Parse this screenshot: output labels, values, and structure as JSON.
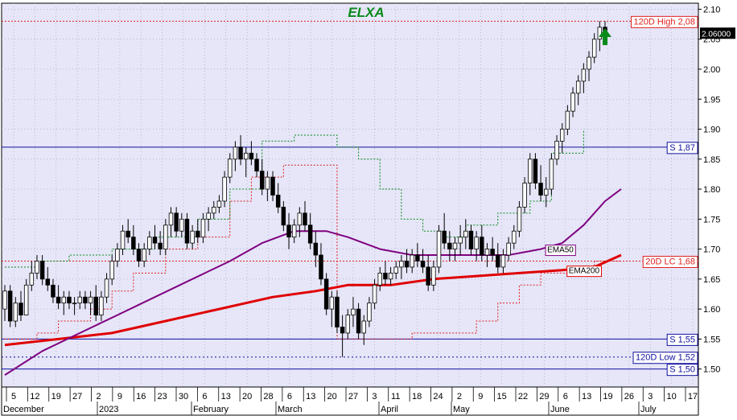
{
  "chart_data": {
    "type": "candlestick",
    "title": "ELXA",
    "colors": {
      "background": "#E6E6F8",
      "title": "#0A8A1A",
      "ema50": "#800080",
      "ema200": "#E00000",
      "support_line": "#1010A0",
      "resistance_line": "#E02020",
      "trailing_stop": "#0A8A1A",
      "trend_arrow": "#0A8A1A"
    },
    "y_axis": {
      "position": "right",
      "range": [
        1.47,
        2.11
      ],
      "ticks": [
        "2.10",
        "2.05",
        "2.00",
        "1.95",
        "1.90",
        "1.85",
        "1.80",
        "1.75",
        "1.70",
        "1.65",
        "1.60",
        "1.55",
        "1.50"
      ]
    },
    "x_axis": {
      "day_ticks": [
        "5",
        "12",
        "19",
        "27",
        "2",
        "9",
        "16",
        "23",
        "30",
        "6",
        "13",
        "20",
        "28",
        "6",
        "13",
        "20",
        "27",
        "3",
        "11",
        "18",
        "24",
        "2",
        "9",
        "15",
        "22",
        "29",
        "6",
        "13",
        "19",
        "26",
        "3",
        "10",
        "17"
      ],
      "month_labels": [
        "December",
        "2023",
        "February",
        "March",
        "April",
        "May",
        "June",
        "July"
      ]
    },
    "last_price": "2.06000",
    "indicators": [
      {
        "name": "EMA50",
        "label": "EMA50"
      },
      {
        "name": "EMA200",
        "label": "EMA200"
      }
    ],
    "horizontal_levels": [
      {
        "label": "120D High 2,08",
        "value": 2.08,
        "kind": "resistance-dotted"
      },
      {
        "label": "S 1,87",
        "value": 1.87,
        "kind": "support"
      },
      {
        "label": "20D LC 1,68",
        "value": 1.68,
        "kind": "resistance-dotted"
      },
      {
        "label": "S 1,55",
        "value": 1.55,
        "kind": "support"
      },
      {
        "label": "120D Low 1,52",
        "value": 1.52,
        "kind": "support-dotted"
      },
      {
        "label": "S 1,50",
        "value": 1.5,
        "kind": "support"
      }
    ],
    "candles": [
      [
        1.6,
        1.64,
        1.58,
        1.63
      ],
      [
        1.63,
        1.64,
        1.57,
        1.58
      ],
      [
        1.58,
        1.62,
        1.57,
        1.61
      ],
      [
        1.61,
        1.63,
        1.58,
        1.59
      ],
      [
        1.59,
        1.65,
        1.59,
        1.64
      ],
      [
        1.64,
        1.68,
        1.63,
        1.66
      ],
      [
        1.66,
        1.69,
        1.65,
        1.68
      ],
      [
        1.68,
        1.69,
        1.64,
        1.65
      ],
      [
        1.65,
        1.67,
        1.63,
        1.64
      ],
      [
        1.64,
        1.65,
        1.61,
        1.62
      ],
      [
        1.62,
        1.64,
        1.6,
        1.61
      ],
      [
        1.61,
        1.63,
        1.59,
        1.62
      ],
      [
        1.62,
        1.63,
        1.6,
        1.61
      ],
      [
        1.61,
        1.62,
        1.59,
        1.61
      ],
      [
        1.61,
        1.63,
        1.6,
        1.62
      ],
      [
        1.62,
        1.63,
        1.6,
        1.61
      ],
      [
        1.61,
        1.63,
        1.59,
        1.62
      ],
      [
        1.62,
        1.64,
        1.58,
        1.59
      ],
      [
        1.59,
        1.63,
        1.58,
        1.62
      ],
      [
        1.62,
        1.66,
        1.61,
        1.65
      ],
      [
        1.65,
        1.69,
        1.64,
        1.68
      ],
      [
        1.68,
        1.71,
        1.67,
        1.7
      ],
      [
        1.7,
        1.74,
        1.69,
        1.73
      ],
      [
        1.73,
        1.75,
        1.71,
        1.72
      ],
      [
        1.72,
        1.74,
        1.69,
        1.7
      ],
      [
        1.7,
        1.71,
        1.67,
        1.68
      ],
      [
        1.68,
        1.71,
        1.67,
        1.7
      ],
      [
        1.7,
        1.73,
        1.69,
        1.72
      ],
      [
        1.72,
        1.74,
        1.7,
        1.71
      ],
      [
        1.71,
        1.73,
        1.69,
        1.7
      ],
      [
        1.7,
        1.75,
        1.69,
        1.74
      ],
      [
        1.74,
        1.77,
        1.72,
        1.76
      ],
      [
        1.76,
        1.77,
        1.72,
        1.73
      ],
      [
        1.73,
        1.76,
        1.72,
        1.75
      ],
      [
        1.75,
        1.76,
        1.7,
        1.71
      ],
      [
        1.71,
        1.74,
        1.7,
        1.73
      ],
      [
        1.73,
        1.75,
        1.71,
        1.72
      ],
      [
        1.72,
        1.76,
        1.71,
        1.75
      ],
      [
        1.75,
        1.77,
        1.73,
        1.76
      ],
      [
        1.76,
        1.78,
        1.75,
        1.77
      ],
      [
        1.77,
        1.79,
        1.76,
        1.78
      ],
      [
        1.78,
        1.83,
        1.77,
        1.82
      ],
      [
        1.82,
        1.86,
        1.81,
        1.85
      ],
      [
        1.85,
        1.88,
        1.83,
        1.87
      ],
      [
        1.87,
        1.89,
        1.84,
        1.85
      ],
      [
        1.85,
        1.87,
        1.82,
        1.86
      ],
      [
        1.86,
        1.88,
        1.84,
        1.85
      ],
      [
        1.85,
        1.86,
        1.82,
        1.83
      ],
      [
        1.83,
        1.85,
        1.79,
        1.8
      ],
      [
        1.8,
        1.83,
        1.78,
        1.82
      ],
      [
        1.82,
        1.83,
        1.78,
        1.79
      ],
      [
        1.79,
        1.81,
        1.76,
        1.77
      ],
      [
        1.77,
        1.78,
        1.73,
        1.74
      ],
      [
        1.74,
        1.76,
        1.7,
        1.72
      ],
      [
        1.72,
        1.75,
        1.71,
        1.74
      ],
      [
        1.74,
        1.77,
        1.72,
        1.76
      ],
      [
        1.76,
        1.78,
        1.73,
        1.74
      ],
      [
        1.74,
        1.76,
        1.7,
        1.71
      ],
      [
        1.71,
        1.73,
        1.67,
        1.69
      ],
      [
        1.69,
        1.71,
        1.64,
        1.65
      ],
      [
        1.65,
        1.66,
        1.59,
        1.6
      ],
      [
        1.6,
        1.63,
        1.57,
        1.62
      ],
      [
        1.62,
        1.63,
        1.56,
        1.57
      ],
      [
        1.57,
        1.59,
        1.52,
        1.56
      ],
      [
        1.56,
        1.6,
        1.55,
        1.59
      ],
      [
        1.59,
        1.62,
        1.57,
        1.6
      ],
      [
        1.6,
        1.61,
        1.55,
        1.56
      ],
      [
        1.56,
        1.59,
        1.54,
        1.58
      ],
      [
        1.58,
        1.62,
        1.57,
        1.61
      ],
      [
        1.61,
        1.65,
        1.6,
        1.64
      ],
      [
        1.64,
        1.67,
        1.63,
        1.66
      ],
      [
        1.66,
        1.68,
        1.64,
        1.65
      ],
      [
        1.65,
        1.67,
        1.64,
        1.66
      ],
      [
        1.66,
        1.68,
        1.65,
        1.67
      ],
      [
        1.67,
        1.69,
        1.65,
        1.68
      ],
      [
        1.68,
        1.7,
        1.66,
        1.67
      ],
      [
        1.67,
        1.7,
        1.66,
        1.69
      ],
      [
        1.69,
        1.71,
        1.67,
        1.68
      ],
      [
        1.68,
        1.7,
        1.66,
        1.67
      ],
      [
        1.67,
        1.69,
        1.63,
        1.64
      ],
      [
        1.64,
        1.68,
        1.63,
        1.67
      ],
      [
        1.67,
        1.74,
        1.66,
        1.73
      ],
      [
        1.73,
        1.76,
        1.7,
        1.71
      ],
      [
        1.71,
        1.73,
        1.68,
        1.7
      ],
      [
        1.7,
        1.72,
        1.68,
        1.71
      ],
      [
        1.71,
        1.74,
        1.69,
        1.72
      ],
      [
        1.72,
        1.75,
        1.7,
        1.73
      ],
      [
        1.73,
        1.74,
        1.69,
        1.7
      ],
      [
        1.7,
        1.73,
        1.68,
        1.72
      ],
      [
        1.72,
        1.74,
        1.68,
        1.69
      ],
      [
        1.69,
        1.71,
        1.67,
        1.7
      ],
      [
        1.7,
        1.72,
        1.68,
        1.69
      ],
      [
        1.69,
        1.71,
        1.66,
        1.67
      ],
      [
        1.67,
        1.7,
        1.66,
        1.69
      ],
      [
        1.69,
        1.72,
        1.68,
        1.71
      ],
      [
        1.71,
        1.74,
        1.7,
        1.73
      ],
      [
        1.73,
        1.78,
        1.72,
        1.77
      ],
      [
        1.77,
        1.82,
        1.76,
        1.81
      ],
      [
        1.81,
        1.86,
        1.79,
        1.85
      ],
      [
        1.85,
        1.86,
        1.8,
        1.81
      ],
      [
        1.81,
        1.84,
        1.78,
        1.79
      ],
      [
        1.79,
        1.82,
        1.77,
        1.8
      ],
      [
        1.8,
        1.86,
        1.79,
        1.85
      ],
      [
        1.85,
        1.89,
        1.84,
        1.88
      ],
      [
        1.88,
        1.91,
        1.86,
        1.9
      ],
      [
        1.9,
        1.94,
        1.89,
        1.93
      ],
      [
        1.93,
        1.97,
        1.92,
        1.96
      ],
      [
        1.96,
        1.99,
        1.94,
        1.98
      ],
      [
        1.98,
        2.01,
        1.96,
        2.0
      ],
      [
        2.0,
        2.03,
        1.98,
        2.02
      ],
      [
        2.02,
        2.06,
        2.01,
        2.05
      ],
      [
        2.05,
        2.08,
        2.03,
        2.07
      ],
      [
        2.07,
        2.08,
        2.04,
        2.06
      ]
    ],
    "ema50": [
      [
        0,
        1.49
      ],
      [
        7,
        1.53
      ],
      [
        14,
        1.56
      ],
      [
        21,
        1.59
      ],
      [
        28,
        1.62
      ],
      [
        35,
        1.65
      ],
      [
        42,
        1.68
      ],
      [
        48,
        1.71
      ],
      [
        54,
        1.73
      ],
      [
        60,
        1.73
      ],
      [
        64,
        1.72
      ],
      [
        70,
        1.7
      ],
      [
        76,
        1.69
      ],
      [
        82,
        1.69
      ],
      [
        88,
        1.69
      ],
      [
        94,
        1.69
      ],
      [
        100,
        1.7
      ],
      [
        104,
        1.71
      ],
      [
        108,
        1.74
      ],
      [
        112,
        1.78
      ],
      [
        115,
        1.8
      ]
    ],
    "ema200": [
      [
        0,
        1.54
      ],
      [
        10,
        1.55
      ],
      [
        20,
        1.56
      ],
      [
        30,
        1.58
      ],
      [
        40,
        1.6
      ],
      [
        50,
        1.62
      ],
      [
        58,
        1.63
      ],
      [
        64,
        1.64
      ],
      [
        72,
        1.64
      ],
      [
        80,
        1.65
      ],
      [
        88,
        1.655
      ],
      [
        96,
        1.66
      ],
      [
        104,
        1.665
      ],
      [
        110,
        1.67
      ],
      [
        115,
        1.69
      ]
    ],
    "trailing_stop_lower": [
      [
        0,
        1.55
      ],
      [
        6,
        1.56
      ],
      [
        10,
        1.58
      ],
      [
        16,
        1.6
      ],
      [
        20,
        1.63
      ],
      [
        24,
        1.66
      ],
      [
        30,
        1.7
      ],
      [
        36,
        1.72
      ],
      [
        42,
        1.78
      ],
      [
        46,
        1.82
      ],
      [
        52,
        1.84
      ],
      [
        54,
        1.84
      ],
      [
        62,
        1.55
      ],
      [
        68,
        1.55
      ],
      [
        76,
        1.56
      ],
      [
        84,
        1.56
      ],
      [
        88,
        1.58
      ],
      [
        92,
        1.61
      ],
      [
        96,
        1.64
      ],
      [
        100,
        1.66
      ],
      [
        106,
        1.67
      ],
      [
        110,
        1.68
      ],
      [
        115,
        1.68
      ]
    ],
    "trailing_stop_upper": [
      [
        0,
        1.67
      ],
      [
        6,
        1.68
      ],
      [
        12,
        1.69
      ],
      [
        20,
        1.7
      ],
      [
        28,
        1.72
      ],
      [
        36,
        1.75
      ],
      [
        42,
        1.8
      ],
      [
        48,
        1.88
      ],
      [
        54,
        1.89
      ],
      [
        62,
        1.87
      ],
      [
        64,
        1.87
      ],
      [
        66,
        1.85
      ],
      [
        70,
        1.8
      ],
      [
        74,
        1.75
      ],
      [
        78,
        1.73
      ],
      [
        82,
        1.72
      ],
      [
        86,
        1.74
      ],
      [
        92,
        1.76
      ],
      [
        98,
        1.78
      ],
      [
        102,
        1.86
      ],
      [
        108,
        1.9
      ]
    ]
  }
}
